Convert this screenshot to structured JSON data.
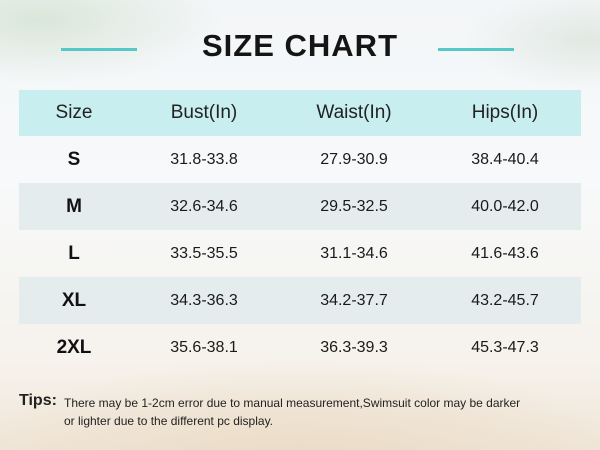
{
  "title": "SIZE CHART",
  "table": {
    "headers": [
      "Size",
      "Bust(In)",
      "Waist(In)",
      "Hips(In)"
    ],
    "rows": [
      [
        "S",
        "31.8-33.8",
        "27.9-30.9",
        "38.4-40.4"
      ],
      [
        "M",
        "32.6-34.6",
        "29.5-32.5",
        "40.0-42.0"
      ],
      [
        "L",
        "33.5-35.5",
        "31.1-34.6",
        "41.6-43.6"
      ],
      [
        "XL",
        "34.3-36.3",
        "34.2-37.7",
        "43.2-45.7"
      ],
      [
        "2XL",
        "35.6-38.1",
        "36.3-39.3",
        "45.3-47.3"
      ]
    ]
  },
  "tips": {
    "label": "Tips:",
    "line1": "There may be 1-2cm error due to manual measurement,Swimsuit color may be darker",
    "line2": "or lighter due to the different pc display."
  },
  "colors": {
    "accent_line": "#56c8c8",
    "header_bg": "#c9eeef",
    "alt_row_bg": "#e1eaec"
  }
}
